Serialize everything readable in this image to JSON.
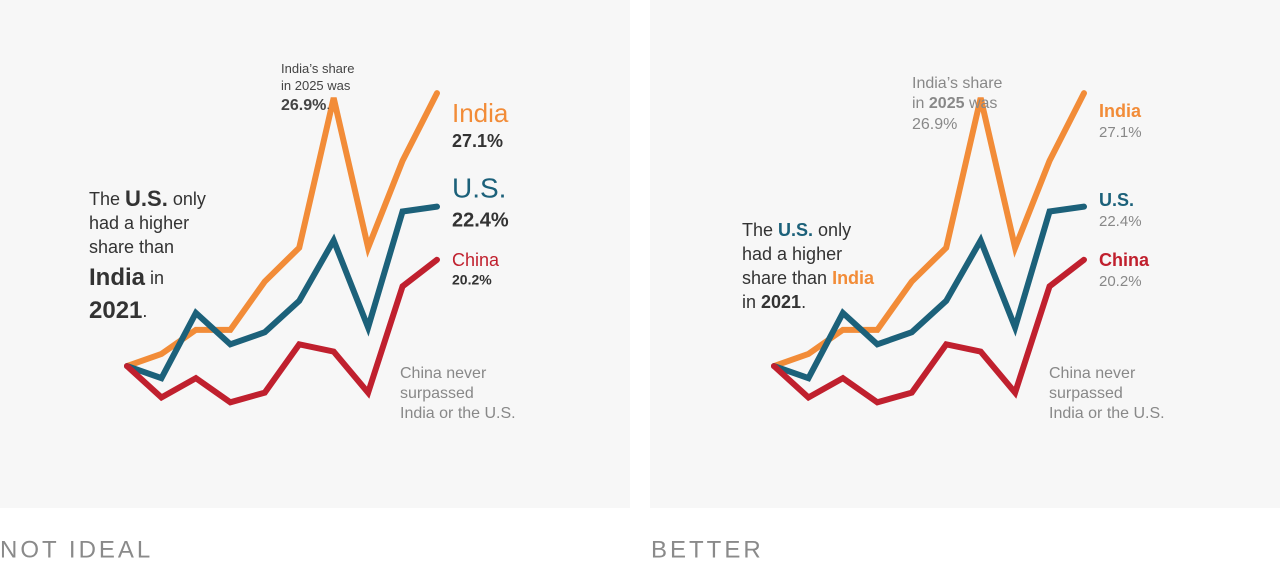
{
  "chart_data": [
    {
      "type": "line",
      "title": "NOT IDEAL",
      "categories": [
        null,
        null,
        null,
        null,
        null,
        null,
        null,
        null,
        null,
        null
      ],
      "ylim": [
        11,
        29.3
      ],
      "series": [
        {
          "name": "India",
          "color": "#f28c38",
          "values": [
            15.8,
            16.3,
            17.3,
            17.3,
            19.3,
            20.7,
            26.9,
            20.7,
            24.3,
            27.1
          ],
          "value_labels": [
            null,
            null,
            null,
            null,
            null,
            null,
            null,
            null,
            null,
            "27.1%"
          ]
        },
        {
          "name": "U.S.",
          "color": "#1c617a",
          "values": [
            15.8,
            15.3,
            18.0,
            16.7,
            17.2,
            18.5,
            21.0,
            17.4,
            22.2,
            22.4
          ],
          "value_labels": [
            null,
            null,
            null,
            null,
            null,
            null,
            null,
            null,
            null,
            "22.4%"
          ]
        },
        {
          "name": "China",
          "color": "#c0202e",
          "values": [
            15.8,
            14.5,
            15.3,
            14.3,
            14.7,
            16.7,
            16.4,
            14.7,
            19.1,
            20.2
          ],
          "value_labels": [
            null,
            null,
            null,
            null,
            null,
            null,
            null,
            null,
            null,
            "20.2%"
          ]
        }
      ],
      "annotations": [
        {
          "lines": [
            [
              "India’s share"
            ],
            [
              "in 2025 was"
            ],
            [
              "26.9%",
              "."
            ]
          ]
        },
        {
          "lines": [
            [
              "The ",
              "U.S.",
              " only"
            ],
            [
              "had a higher"
            ],
            [
              "share than"
            ],
            [
              "India",
              " in"
            ],
            [
              "2021",
              "."
            ]
          ]
        },
        {
          "lines": [
            [
              "China never"
            ],
            [
              "surpassed"
            ],
            [
              "India or the U.S."
            ]
          ]
        }
      ]
    },
    {
      "type": "line",
      "title": "BETTER",
      "categories": [
        null,
        null,
        null,
        null,
        null,
        null,
        null,
        null,
        null,
        null
      ],
      "ylim": [
        11,
        29.3
      ],
      "series": [
        {
          "name": "India",
          "color": "#f28c38",
          "values": [
            15.8,
            16.3,
            17.3,
            17.3,
            19.3,
            20.7,
            26.9,
            20.7,
            24.3,
            27.1
          ],
          "value_labels": [
            null,
            null,
            null,
            null,
            null,
            null,
            null,
            null,
            null,
            "27.1%"
          ]
        },
        {
          "name": "U.S.",
          "color": "#1c617a",
          "values": [
            15.8,
            15.3,
            18.0,
            16.7,
            17.2,
            18.5,
            21.0,
            17.4,
            22.2,
            22.4
          ],
          "value_labels": [
            null,
            null,
            null,
            null,
            null,
            null,
            null,
            null,
            null,
            "22.4%"
          ]
        },
        {
          "name": "China",
          "color": "#c0202e",
          "values": [
            15.8,
            14.5,
            15.3,
            14.3,
            14.7,
            16.7,
            16.4,
            14.7,
            19.1,
            20.2
          ],
          "value_labels": [
            null,
            null,
            null,
            null,
            null,
            null,
            null,
            null,
            null,
            "20.2%"
          ]
        }
      ],
      "annotations": [
        {
          "lines": [
            [
              "India’s share"
            ],
            [
              "in ",
              "2025",
              " was"
            ],
            [
              "26.9%"
            ]
          ]
        },
        {
          "lines": [
            [
              "The ",
              "U.S.",
              " only"
            ],
            [
              "had a higher"
            ],
            [
              "share than ",
              "India"
            ],
            [
              "in ",
              "2021",
              "."
            ]
          ]
        },
        {
          "lines": [
            [
              "China never"
            ],
            [
              "surpassed"
            ],
            [
              "India or the U.S."
            ]
          ]
        }
      ]
    }
  ]
}
